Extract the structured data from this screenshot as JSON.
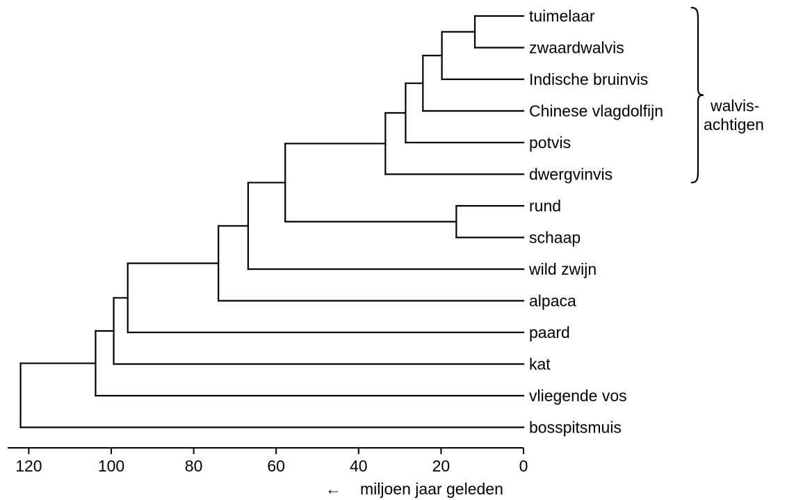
{
  "leaves": [
    {
      "id": "tuimelaar",
      "label": "tuimelaar"
    },
    {
      "id": "zwaardwalvis",
      "label": "zwaardwalvis"
    },
    {
      "id": "indische-bruinvis",
      "label": "Indische bruinvis"
    },
    {
      "id": "chinese-vlagdolfijn",
      "label": "Chinese vlagdolfijn"
    },
    {
      "id": "potvis",
      "label": "potvis"
    },
    {
      "id": "dwergvinvis",
      "label": "dwergvinvis"
    },
    {
      "id": "rund",
      "label": "rund"
    },
    {
      "id": "schaap",
      "label": "schaap"
    },
    {
      "id": "wild-zwijn",
      "label": "wild zwijn"
    },
    {
      "id": "alpaca",
      "label": "alpaca"
    },
    {
      "id": "paard",
      "label": "paard"
    },
    {
      "id": "kat",
      "label": "kat"
    },
    {
      "id": "vliegende-vos",
      "label": "vliegende vos"
    },
    {
      "id": "bosspitsmuis",
      "label": "bosspitsmuis"
    }
  ],
  "nodes": [
    {
      "id": "n1",
      "age": 11.8,
      "children": [
        "tuimelaar",
        "zwaardwalvis"
      ]
    },
    {
      "id": "n2",
      "age": 19.8,
      "children": [
        "n1",
        "indische-bruinvis"
      ]
    },
    {
      "id": "n3",
      "age": 24.4,
      "children": [
        "n2",
        "chinese-vlagdolfijn"
      ]
    },
    {
      "id": "n4",
      "age": 28.6,
      "children": [
        "n3",
        "potvis"
      ]
    },
    {
      "id": "n5",
      "age": 33.5,
      "children": [
        "n4",
        "dwergvinvis"
      ]
    },
    {
      "id": "n6",
      "age": 16.3,
      "children": [
        "rund",
        "schaap"
      ]
    },
    {
      "id": "n7",
      "age": 57.8,
      "children": [
        "n5",
        "n6"
      ]
    },
    {
      "id": "n8",
      "age": 66.8,
      "children": [
        "n7",
        "wild-zwijn"
      ]
    },
    {
      "id": "n9",
      "age": 74.0,
      "children": [
        "n8",
        "alpaca"
      ]
    },
    {
      "id": "n10",
      "age": 96.0,
      "children": [
        "n9",
        "paard"
      ]
    },
    {
      "id": "n11",
      "age": 99.4,
      "children": [
        "n10",
        "kat"
      ]
    },
    {
      "id": "n12",
      "age": 103.8,
      "children": [
        "n11",
        "vliegende-vos"
      ]
    },
    {
      "id": "n13",
      "age": 122.0,
      "children": [
        "n12",
        "bosspitsmuis"
      ]
    }
  ],
  "axis": {
    "min": 0,
    "max": 125,
    "ticks": [
      120,
      100,
      80,
      60,
      40,
      20,
      0
    ],
    "tick_labels": [
      "120",
      "100",
      "80",
      "60",
      "40",
      "20",
      "0"
    ],
    "arrow_glyph": "←",
    "title": "miljoen jaar geleden"
  },
  "group": {
    "label_line1": "walvis-",
    "label_line2": "achtigen",
    "members": [
      "tuimelaar",
      "zwaardwalvis",
      "indische-bruinvis",
      "chinese-vlagdolfijn",
      "potvis",
      "dwergvinvis"
    ]
  }
}
